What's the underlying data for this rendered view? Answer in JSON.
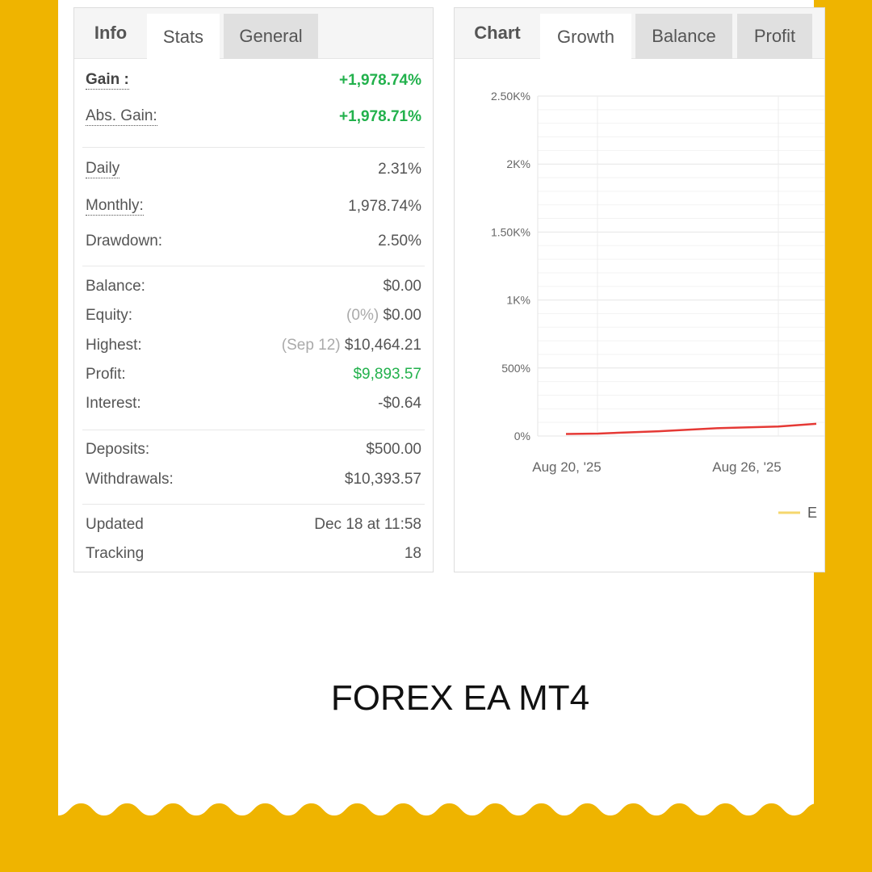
{
  "stats_panel": {
    "tabs": [
      {
        "label": "Info"
      },
      {
        "label": "Stats"
      },
      {
        "label": "General"
      }
    ],
    "rows": [
      {
        "label": "Gain :",
        "value": "+1,978.74%"
      },
      {
        "label": "Abs. Gain:",
        "value": "+1,978.71%"
      },
      {
        "label": "Daily",
        "value": "2.31%"
      },
      {
        "label": "Monthly:",
        "value": "1,978.74%"
      },
      {
        "label": "Drawdown:",
        "value": "2.50%"
      },
      {
        "label": "Balance:",
        "value": "$0.00"
      },
      {
        "label": "Equity:",
        "note": "(0%)",
        "value": "$0.00"
      },
      {
        "label": "Highest:",
        "note": "(Sep 12)",
        "value": "$10,464.21"
      },
      {
        "label": "Profit:",
        "value": "$9,893.57"
      },
      {
        "label": "Interest:",
        "value": "-$0.64"
      },
      {
        "label": "Deposits:",
        "value": "$500.00"
      },
      {
        "label": "Withdrawals:",
        "value": "$10,393.57"
      },
      {
        "label": "Updated",
        "value": "Dec 18 at 11:58"
      },
      {
        "label": "Tracking",
        "value": "18"
      }
    ]
  },
  "chart_panel": {
    "tabs": [
      {
        "label": "Chart"
      },
      {
        "label": "Growth"
      },
      {
        "label": "Balance"
      },
      {
        "label": "Profit"
      }
    ],
    "legend_label": "E"
  },
  "chart_data": {
    "type": "line",
    "y_ticks": [
      "2.50K%",
      "2K%",
      "1.50K%",
      "1K%",
      "500%",
      "0%"
    ],
    "x_ticks": [
      "Aug 20, '25",
      "Aug 26, '25"
    ],
    "ylim": [
      0,
      2500
    ],
    "grid": true,
    "series": [
      {
        "color": "#e53935",
        "x": [
          "Aug 19",
          "Aug 21",
          "Aug 23",
          "Aug 25",
          "Aug 26",
          "Aug 27"
        ],
        "values": [
          15,
          18,
          35,
          58,
          70,
          90
        ]
      }
    ],
    "legend_color": "#f5d76e"
  },
  "title": "FOREX EA MT4",
  "colors": {
    "background": "#EFB400",
    "positive": "#22b14c",
    "line": "#e53935"
  }
}
